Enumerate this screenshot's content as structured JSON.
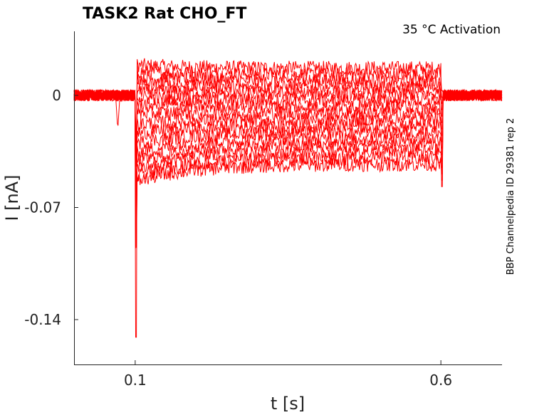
{
  "chart_data": {
    "type": "line",
    "title": "TASK2  Rat  CHO_FT",
    "annotation": "35 °C  Activation",
    "side_label": "BBP Channelpedia ID 29381 rep 2",
    "xlabel": "t [s]",
    "ylabel": "I [nA]",
    "xlim": [
      0.0,
      0.7
    ],
    "ylim": [
      -0.168,
      0.04
    ],
    "x_ticks": [
      "0.1",
      "0.6"
    ],
    "x_tick_values": [
      0.1,
      0.6
    ],
    "y_ticks": [
      "0",
      "-0.07",
      "-0.14"
    ],
    "y_tick_values": [
      0,
      -0.07,
      -0.14
    ],
    "grid": false,
    "line_color": "#ff0000",
    "pulse_start_s": 0.1,
    "pulse_end_s": 0.6,
    "baseline_nA": 0.0,
    "sweep_levels_nA": [
      0.017,
      0.013,
      0.009,
      0.005,
      0.001,
      -0.003,
      -0.007,
      -0.011,
      -0.015,
      -0.019,
      -0.023,
      -0.027,
      -0.031,
      -0.035,
      -0.039,
      -0.043
    ],
    "sweep_initial_levels_nA": [
      0.019,
      0.015,
      0.011,
      0.007,
      0.003,
      -0.001,
      -0.005,
      -0.011,
      -0.018,
      -0.024,
      -0.03,
      -0.036,
      -0.042,
      -0.047,
      -0.051,
      -0.054
    ],
    "onset_peak_nA": -0.151,
    "offset_peak_nA": -0.057,
    "prepulse_dip_nA": -0.022
  }
}
